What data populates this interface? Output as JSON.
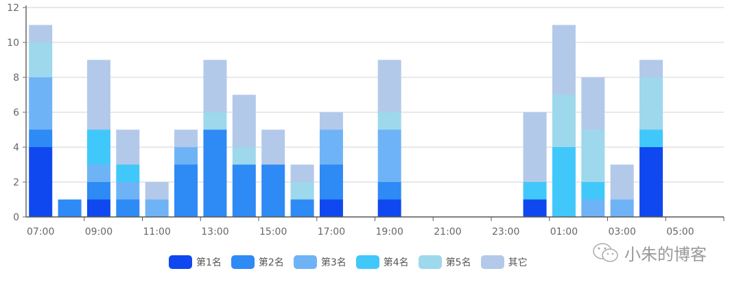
{
  "watermark": "小朱的博客",
  "chart_data": {
    "type": "bar",
    "stacked": true,
    "categories": [
      "07:00",
      "08:00",
      "09:00",
      "10:00",
      "11:00",
      "12:00",
      "13:00",
      "14:00",
      "15:00",
      "16:00",
      "17:00",
      "18:00",
      "19:00",
      "20:00",
      "21:00",
      "22:00",
      "23:00",
      "00:00",
      "01:00",
      "02:00",
      "03:00",
      "04:00",
      "05:00",
      "06:00"
    ],
    "tick_labels": [
      "07:00",
      "09:00",
      "11:00",
      "13:00",
      "15:00",
      "17:00",
      "19:00",
      "21:00",
      "23:00",
      "01:00",
      "03:00",
      "05:00"
    ],
    "ylim": [
      0,
      12
    ],
    "yticks": [
      0,
      2,
      4,
      6,
      8,
      10,
      12
    ],
    "grid": true,
    "legend_position": "bottom",
    "series": [
      {
        "name": "第1名",
        "color": "#1048f0",
        "values": [
          4,
          0,
          1,
          0,
          0,
          0,
          0,
          0,
          0,
          0,
          1,
          0,
          1,
          0,
          0,
          0,
          0,
          1,
          0,
          0,
          0,
          4,
          0,
          0
        ]
      },
      {
        "name": "第2名",
        "color": "#2e8af5",
        "values": [
          1,
          1,
          1,
          1,
          0,
          3,
          5,
          3,
          3,
          1,
          2,
          0,
          1,
          0,
          0,
          0,
          0,
          0,
          0,
          0,
          0,
          0,
          0,
          0
        ]
      },
      {
        "name": "第3名",
        "color": "#6fb3f7",
        "values": [
          3,
          0,
          1,
          1,
          1,
          1,
          0,
          0,
          0,
          0,
          2,
          0,
          3,
          0,
          0,
          0,
          0,
          0,
          0,
          1,
          1,
          0,
          0,
          0
        ]
      },
      {
        "name": "第4名",
        "color": "#41c8fa",
        "values": [
          0,
          0,
          2,
          1,
          0,
          0,
          0,
          0,
          0,
          0,
          0,
          0,
          0,
          0,
          0,
          0,
          0,
          1,
          4,
          1,
          0,
          1,
          0,
          0
        ]
      },
      {
        "name": "第5名",
        "color": "#9dd8ec",
        "values": [
          2,
          0,
          0,
          0,
          0,
          0,
          1,
          1,
          0,
          1,
          0,
          0,
          1,
          0,
          0,
          0,
          0,
          0,
          3,
          3,
          0,
          3,
          0,
          0
        ]
      },
      {
        "name": "其它",
        "color": "#b3c9ea",
        "values": [
          1,
          0,
          4,
          2,
          1,
          1,
          3,
          3,
          2,
          1,
          1,
          0,
          3,
          0,
          0,
          0,
          0,
          4,
          4,
          3,
          2,
          1,
          0,
          0
        ]
      }
    ]
  }
}
